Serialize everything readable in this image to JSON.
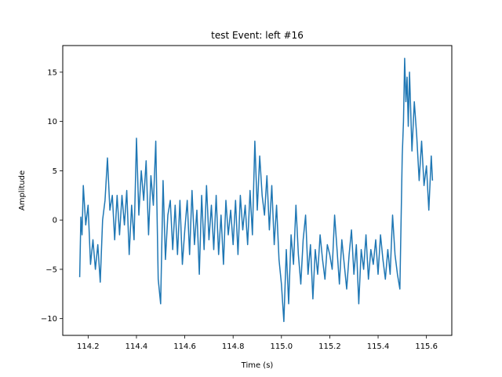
{
  "chart_data": {
    "type": "line",
    "title": "test Event: left #16",
    "xlabel": "Time (s)",
    "ylabel": "Amplitude",
    "xlim": [
      114.095,
      115.705
    ],
    "ylim": [
      -11.7,
      17.7
    ],
    "xticks": [
      114.2,
      114.4,
      114.6,
      114.8,
      115.0,
      115.2,
      115.4,
      115.6
    ],
    "xtick_labels": [
      "114.2",
      "114.4",
      "114.6",
      "114.8",
      "115.0",
      "115.2",
      "115.4",
      "115.6"
    ],
    "yticks": [
      -10,
      -5,
      0,
      5,
      10,
      15
    ],
    "ytick_labels": [
      "−10",
      "−5",
      "0",
      "5",
      "10",
      "15"
    ],
    "grid": false,
    "color": "#1f77b4",
    "series": [
      {
        "x": [
          114.165,
          114.17,
          114.175,
          114.18,
          114.19,
          114.2,
          114.21,
          114.22,
          114.23,
          114.24,
          114.25,
          114.26,
          114.27,
          114.28,
          114.29,
          114.3,
          114.31,
          114.32,
          114.33,
          114.34,
          114.35,
          114.36,
          114.37,
          114.38,
          114.39,
          114.4,
          114.41,
          114.42,
          114.43,
          114.44,
          114.45,
          114.46,
          114.47,
          114.48,
          114.49,
          114.5,
          114.51,
          114.52,
          114.53,
          114.54,
          114.55,
          114.56,
          114.57,
          114.58,
          114.59,
          114.6,
          114.61,
          114.62,
          114.63,
          114.64,
          114.65,
          114.66,
          114.67,
          114.68,
          114.69,
          114.7,
          114.71,
          114.72,
          114.73,
          114.74,
          114.75,
          114.76,
          114.77,
          114.78,
          114.79,
          114.8,
          114.81,
          114.82,
          114.83,
          114.84,
          114.85,
          114.86,
          114.87,
          114.88,
          114.89,
          114.9,
          114.91,
          114.92,
          114.93,
          114.94,
          114.95,
          114.96,
          114.97,
          114.98,
          114.99,
          115.0,
          115.01,
          115.02,
          115.03,
          115.04,
          115.05,
          115.06,
          115.07,
          115.08,
          115.09,
          115.1,
          115.11,
          115.12,
          115.13,
          115.14,
          115.15,
          115.16,
          115.17,
          115.18,
          115.19,
          115.2,
          115.21,
          115.22,
          115.23,
          115.24,
          115.25,
          115.26,
          115.27,
          115.28,
          115.29,
          115.3,
          115.31,
          115.32,
          115.33,
          115.34,
          115.35,
          115.36,
          115.37,
          115.38,
          115.39,
          115.4,
          115.41,
          115.42,
          115.43,
          115.44,
          115.45,
          115.46,
          115.47,
          115.48,
          115.49,
          115.5,
          115.505,
          115.51,
          115.515,
          115.52,
          115.525,
          115.53,
          115.54,
          115.55,
          115.56,
          115.57,
          115.58,
          115.59,
          115.6,
          115.61,
          115.62,
          115.625
        ],
        "y": [
          -5.8,
          0.3,
          -1.5,
          3.5,
          -0.5,
          1.5,
          -4.5,
          -2.0,
          -5.0,
          -2.5,
          -6.3,
          0.0,
          2.0,
          6.3,
          1.0,
          2.5,
          -2.0,
          2.5,
          -1.5,
          2.5,
          -0.5,
          3.0,
          -3.5,
          1.5,
          -2.0,
          8.3,
          0.5,
          5.0,
          2.0,
          6.0,
          -1.5,
          4.5,
          1.5,
          8.0,
          -6.0,
          -8.5,
          4.0,
          -4.0,
          0.5,
          2.0,
          -3.0,
          1.5,
          -3.5,
          2.0,
          -4.5,
          -1.0,
          2.0,
          -3.5,
          3.0,
          -2.5,
          1.0,
          -5.5,
          2.5,
          -3.0,
          3.5,
          -2.0,
          1.5,
          -3.0,
          2.5,
          -3.5,
          0.5,
          -4.5,
          2.0,
          -1.5,
          1.0,
          -2.5,
          2.0,
          -3.5,
          2.5,
          -1.0,
          1.5,
          -2.5,
          3.0,
          -1.5,
          8.0,
          1.0,
          6.5,
          2.5,
          0.5,
          4.5,
          -1.0,
          3.5,
          -2.5,
          1.5,
          -4.0,
          -6.5,
          -10.3,
          -3.0,
          -8.5,
          -1.5,
          -4.5,
          1.5,
          -3.5,
          -6.5,
          -2.0,
          0.5,
          -5.5,
          -2.5,
          -8.0,
          -3.0,
          -5.5,
          -1.5,
          -4.0,
          -6.0,
          -2.5,
          -3.5,
          -5.0,
          0.5,
          -3.0,
          -6.5,
          -2.0,
          -4.5,
          -7.0,
          -3.5,
          -1.0,
          -5.5,
          -2.5,
          -8.5,
          -3.0,
          -5.0,
          -1.5,
          -6.0,
          -3.0,
          -4.5,
          -2.0,
          -5.5,
          -1.5,
          -4.0,
          -6.0,
          -3.0,
          -5.5,
          0.5,
          -3.5,
          -5.5,
          -7.0,
          6.5,
          10.0,
          16.4,
          12.0,
          14.5,
          9.5,
          15.0,
          7.0,
          12.0,
          8.5,
          4.0,
          8.0,
          3.5,
          5.5,
          1.0,
          6.5,
          4.0
        ]
      }
    ]
  }
}
